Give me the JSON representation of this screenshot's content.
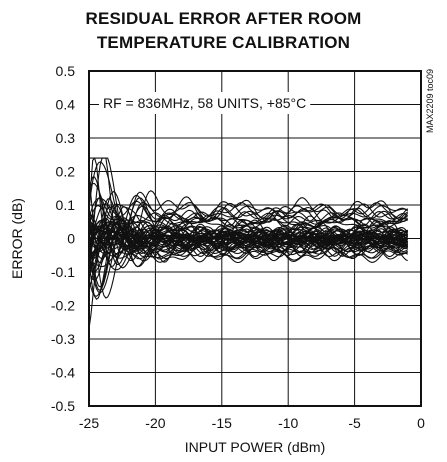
{
  "chart_data": {
    "type": "line",
    "title_line1": "RESIDUAL ERROR AFTER ROOM",
    "title_line2": "TEMPERATURE CALIBRATION",
    "xlabel": "INPUT POWER (dBm)",
    "ylabel": "ERROR (dB)",
    "annotation": "RF = 836MHz, 58 UNITS, +85°C",
    "side_label": "MAX2209 toc09",
    "xlim": [
      -25,
      0
    ],
    "ylim": [
      -0.5,
      0.5
    ],
    "x_ticks": [
      "-25",
      "-20",
      "-15",
      "-10",
      "-5",
      "0"
    ],
    "y_ticks": [
      "0.5",
      "0.4",
      "0.3",
      "0.2",
      "0.1",
      "0",
      "-0.1",
      "-0.2",
      "-0.3",
      "-0.4",
      "-0.5"
    ],
    "grid": true,
    "x_range_data": [
      -25,
      -1
    ],
    "series_count": 58,
    "series_offsets_at_end": [
      0.09,
      0.085,
      0.08,
      0.075,
      0.07,
      0.065,
      0.06,
      0.05,
      0.04,
      0.03,
      0.02,
      0.015,
      0.012,
      0.01,
      0.008,
      0.006,
      0.004,
      0.002,
      0.0,
      0.0,
      -0.002,
      -0.004,
      -0.006,
      -0.008,
      -0.01,
      -0.012,
      -0.015,
      -0.018,
      -0.02,
      -0.022,
      -0.025,
      -0.03,
      -0.035,
      -0.04,
      -0.045,
      -0.05,
      0.005,
      -0.005,
      0.003,
      -0.003,
      0.001,
      -0.001,
      0.007,
      -0.007,
      0.009,
      -0.009,
      0.011,
      -0.011,
      0.013,
      -0.013,
      0.018,
      -0.016,
      0.025,
      -0.028,
      0.035,
      0.045,
      0.055,
      -0.038
    ],
    "series_initial_spread": [
      0.23,
      -0.25,
      0.18,
      -0.2,
      0.15,
      -0.17,
      0.12,
      -0.14,
      0.1,
      -0.12,
      0.08,
      -0.1,
      0.06,
      -0.08,
      0.05,
      -0.06,
      0.04,
      -0.05,
      0.03,
      -0.04,
      0.02,
      -0.03,
      0.01,
      -0.02,
      0.0,
      -0.01,
      0.21,
      -0.22,
      0.16,
      -0.15,
      0.13,
      -0.11,
      0.09,
      -0.09,
      0.07,
      -0.07,
      0.05,
      -0.05,
      0.03,
      -0.03,
      0.02,
      -0.02,
      0.11,
      -0.13,
      0.14,
      -0.16,
      0.19,
      -0.18,
      0.12,
      -0.19,
      0.17,
      -0.06,
      0.08,
      -0.04,
      0.06,
      0.04,
      0.1,
      -0.08
    ]
  }
}
